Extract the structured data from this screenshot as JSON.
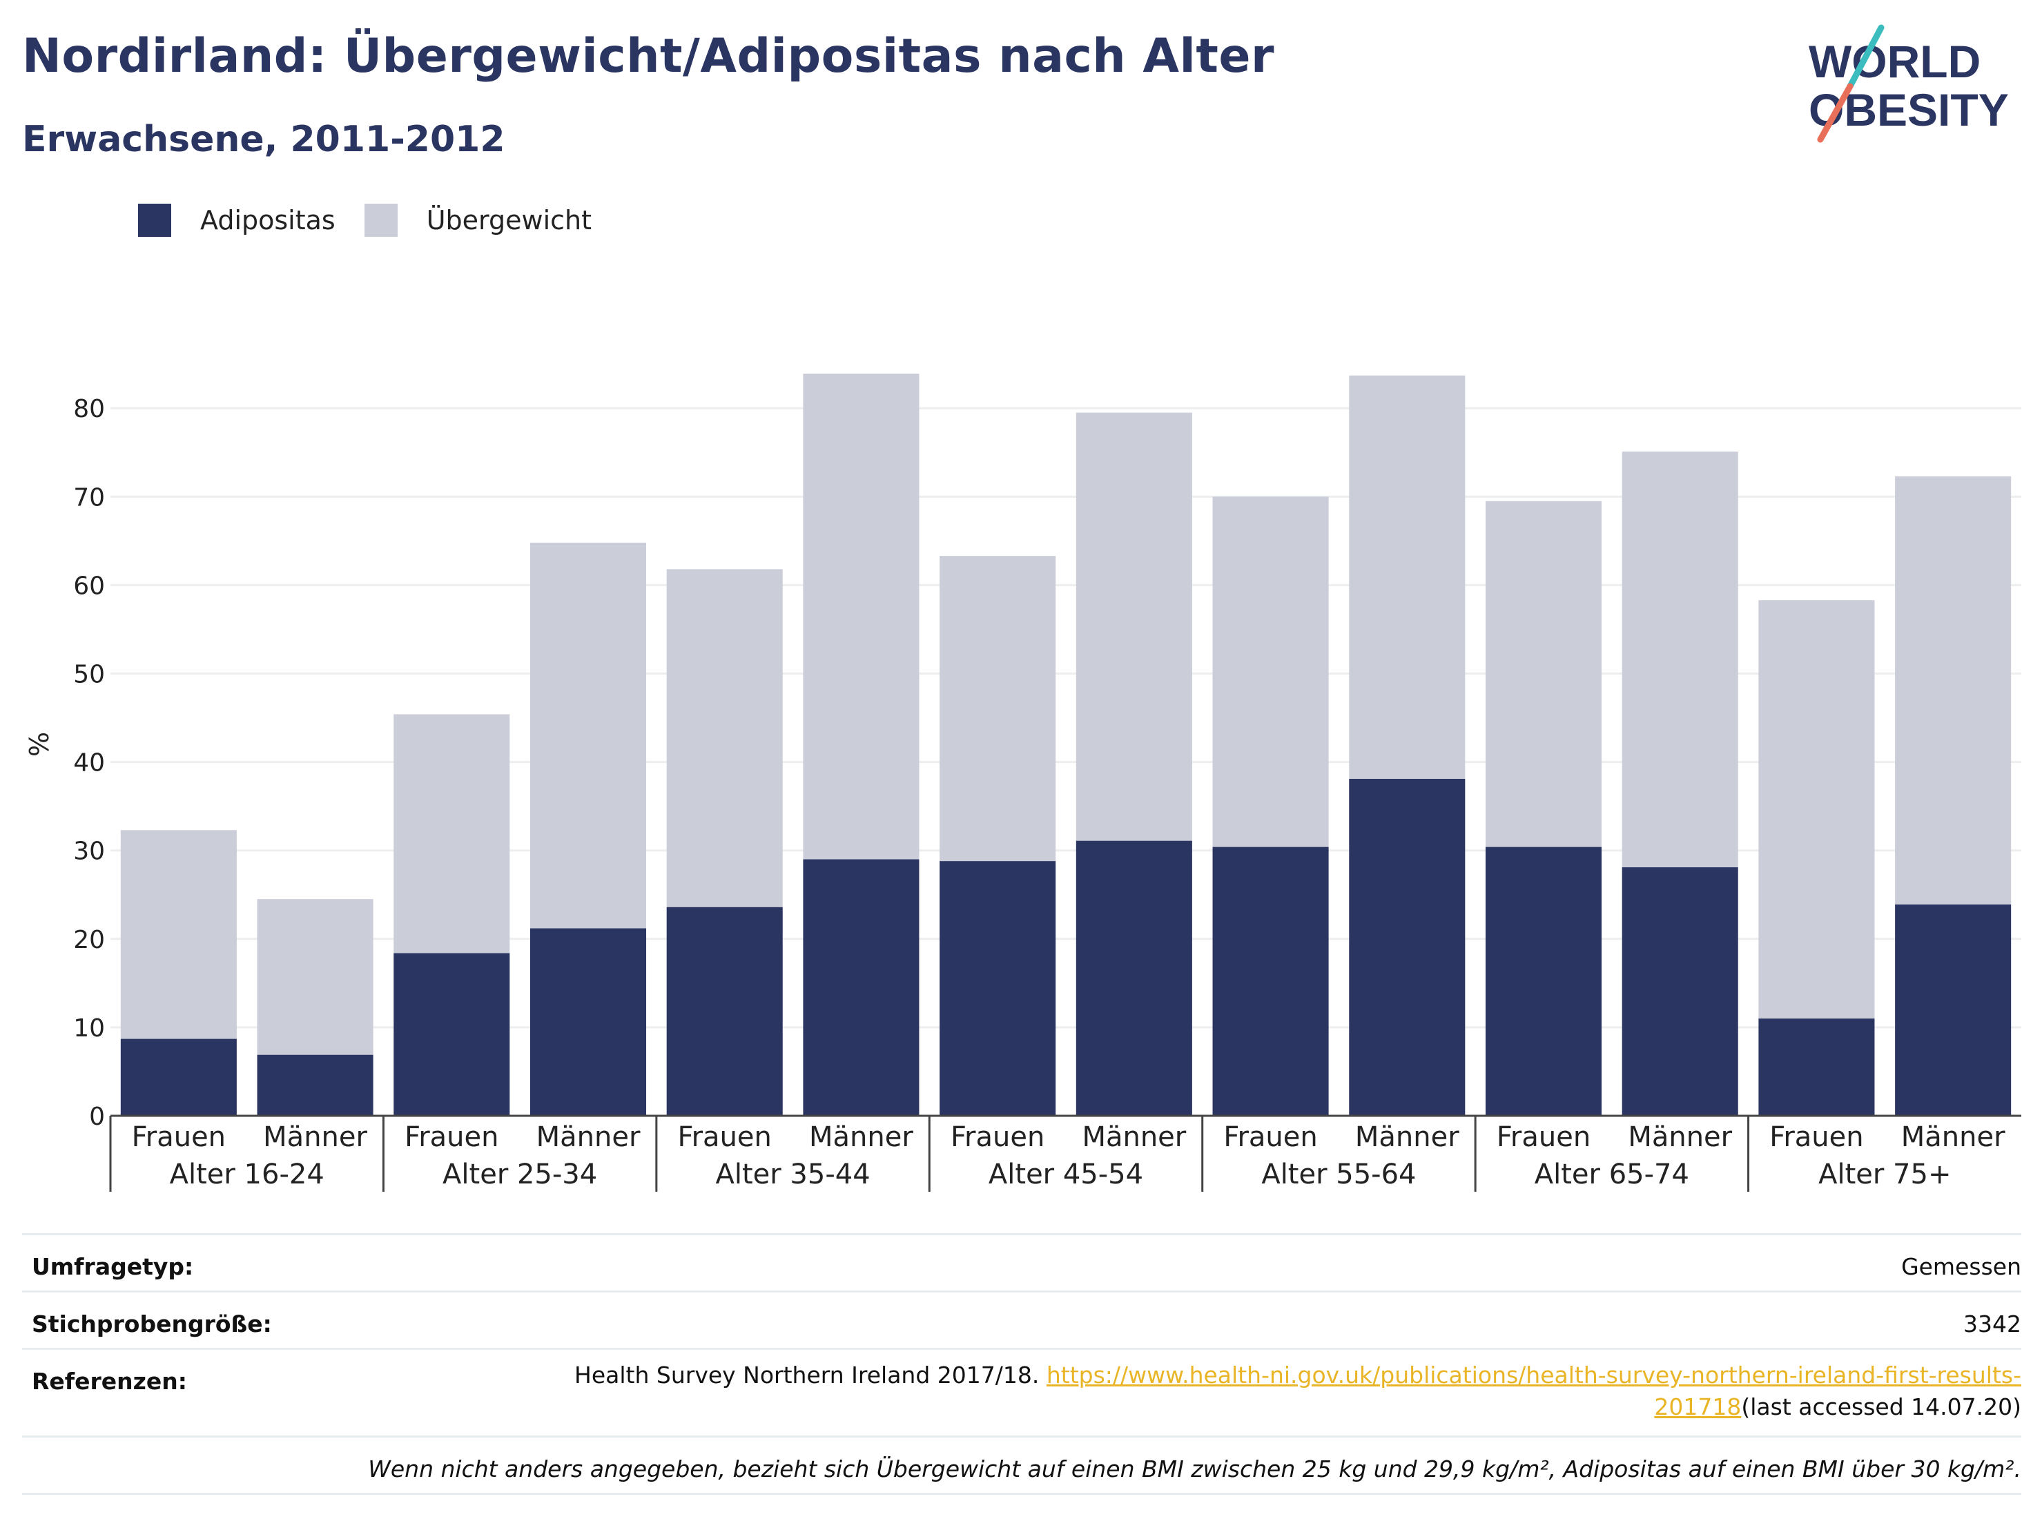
{
  "header": {
    "title": "Nordirland: Übergewicht/Adipositas nach Alter",
    "subtitle": "Erwachsene, 2011-2012"
  },
  "logo": {
    "line1": "WORLD",
    "line2": "OBESITY",
    "colors": {
      "text": "#2b3562",
      "slash_top": "#3bbdbf",
      "slash_bottom": "#e8705a"
    }
  },
  "legend": {
    "items": [
      {
        "label": "Adipositas",
        "color": "#2b3562"
      },
      {
        "label": "Übergewicht",
        "color": "#cbcdd8"
      }
    ]
  },
  "chart_data": {
    "type": "bar",
    "stacked": true,
    "ylabel": "%",
    "ylim": [
      0,
      84
    ],
    "yticks": [
      0,
      10,
      20,
      30,
      40,
      50,
      60,
      70,
      80
    ],
    "grid": true,
    "legend_position": "top-left",
    "groups": [
      "Alter 16-24",
      "Alter 25-34",
      "Alter 35-44",
      "Alter 45-54",
      "Alter 55-64",
      "Alter 65-74",
      "Alter 75+"
    ],
    "subcategories": [
      "Frauen",
      "Männer"
    ],
    "series": [
      {
        "name": "Adipositas",
        "color": "#2b3562",
        "values": [
          8.7,
          6.9,
          18.4,
          21.2,
          23.6,
          29.0,
          28.8,
          31.1,
          30.4,
          38.1,
          30.4,
          28.1,
          11.0,
          23.9
        ]
      },
      {
        "name": "Übergewicht",
        "color": "#cbcdd8",
        "values": [
          23.6,
          17.6,
          27.0,
          43.6,
          38.2,
          54.9,
          34.5,
          48.4,
          39.6,
          45.6,
          39.1,
          47.0,
          47.3,
          48.4
        ]
      }
    ]
  },
  "info_table": {
    "survey_type_label": "Umfragetyp:",
    "survey_type_value": "Gemessen",
    "sample_size_label": "Stichprobengröße:",
    "sample_size_value": "3342",
    "references_label": "Referenzen:",
    "references_text": "Health Survey Northern Ireland 2017/18. ",
    "references_link_line1": "https://www.health-ni.gov.uk/publications/health-survey-northern-ireland-first-results-",
    "references_link_line2": "201718",
    "references_suffix": "(last accessed 14.07.20)",
    "note": "Wenn nicht anders angegeben, bezieht sich Übergewicht auf einen BMI zwischen 25 kg und 29,9 kg/m², Adipositas auf einen BMI über 30 kg/m²."
  }
}
